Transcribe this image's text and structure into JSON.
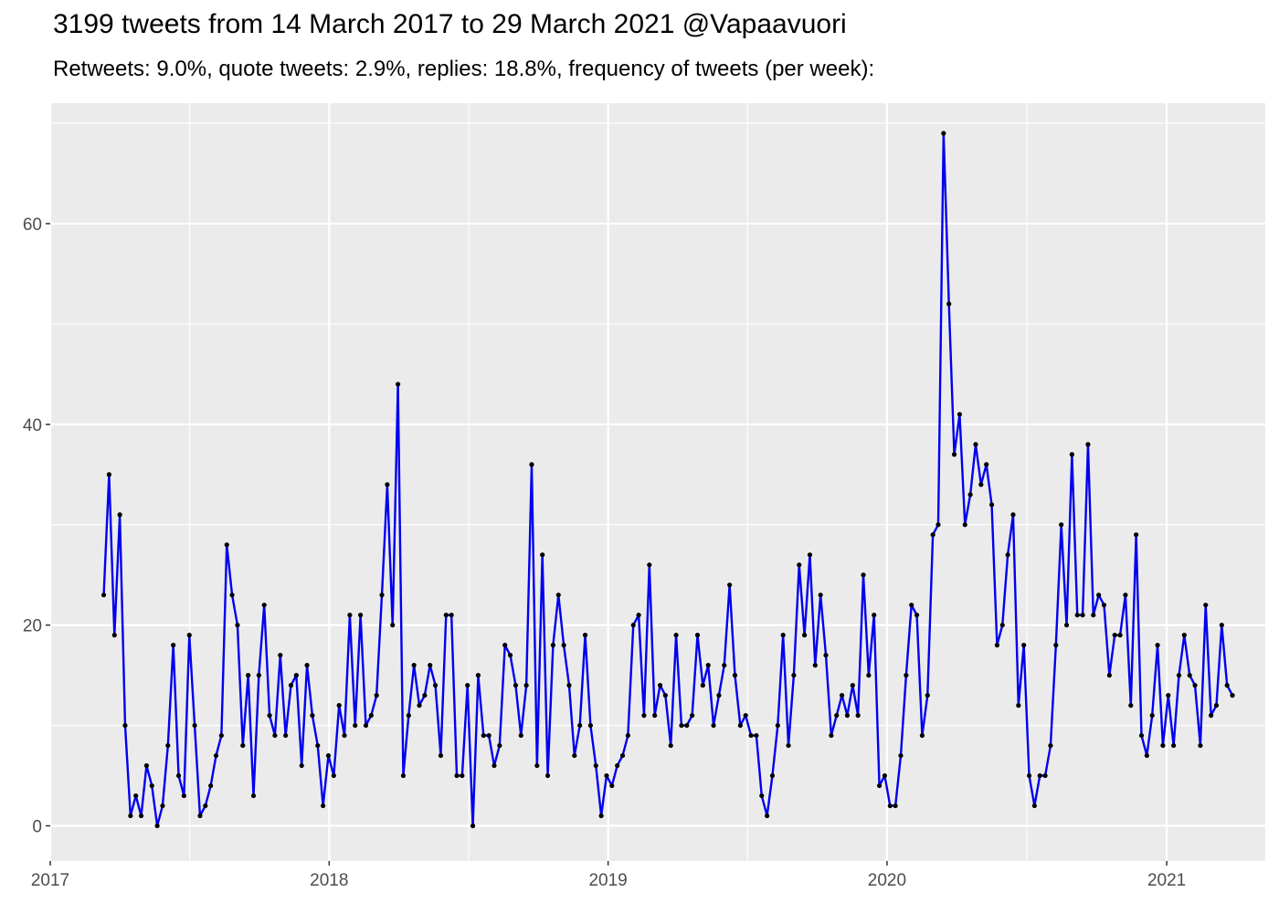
{
  "chart_data": {
    "type": "line",
    "title": "3199 tweets from 14 March 2017 to 29 March 2021 @Vapaavuori",
    "subtitle": "Retweets: 9.0%, quote tweets: 2.9%, replies: 18.8%, frequency of tweets (per week):",
    "xlabel": "",
    "ylabel": "",
    "x_start": "2017-03-12",
    "x_step": "7 days",
    "xlim": [
      "2017-01-01",
      "2021-05-10"
    ],
    "ylim": [
      -3.5,
      72
    ],
    "x_ticks": [
      "2017",
      "2018",
      "2019",
      "2020",
      "2021"
    ],
    "y_ticks": [
      0,
      20,
      40,
      60
    ],
    "grid": true,
    "legend": "none",
    "line_color": "#0000ee",
    "point_color": "#000000",
    "panel_color": "#ebebeb",
    "values": [
      23,
      35,
      19,
      31,
      10,
      1,
      3,
      1,
      6,
      4,
      0,
      2,
      8,
      18,
      5,
      3,
      19,
      10,
      1,
      2,
      4,
      7,
      9,
      28,
      23,
      20,
      8,
      15,
      3,
      15,
      22,
      11,
      9,
      17,
      9,
      14,
      15,
      6,
      16,
      11,
      8,
      2,
      7,
      5,
      12,
      9,
      21,
      10,
      21,
      10,
      11,
      13,
      23,
      34,
      20,
      44,
      5,
      11,
      16,
      12,
      13,
      16,
      14,
      7,
      21,
      21,
      5,
      5,
      14,
      0,
      15,
      9,
      9,
      6,
      8,
      18,
      17,
      14,
      9,
      14,
      36,
      6,
      27,
      5,
      18,
      23,
      18,
      14,
      7,
      10,
      19,
      10,
      6,
      1,
      5,
      4,
      6,
      7,
      9,
      20,
      21,
      11,
      26,
      11,
      14,
      13,
      8,
      19,
      10,
      10,
      11,
      19,
      14,
      16,
      10,
      13,
      16,
      24,
      15,
      10,
      11,
      9,
      9,
      3,
      1,
      5,
      10,
      19,
      8,
      15,
      26,
      19,
      27,
      16,
      23,
      17,
      9,
      11,
      13,
      11,
      14,
      11,
      25,
      15,
      21,
      4,
      5,
      2,
      2,
      7,
      15,
      22,
      21,
      9,
      13,
      29,
      30,
      69,
      52,
      37,
      41,
      30,
      33,
      38,
      34,
      36,
      32,
      18,
      20,
      27,
      31,
      12,
      18,
      5,
      2,
      5,
      5,
      8,
      18,
      30,
      20,
      37,
      21,
      21,
      38,
      21,
      23,
      22,
      15,
      19,
      19,
      23,
      12,
      29,
      9,
      7,
      11,
      18,
      8,
      13,
      8,
      15,
      19,
      15,
      14,
      8,
      22,
      11,
      12,
      20,
      14,
      13
    ]
  }
}
